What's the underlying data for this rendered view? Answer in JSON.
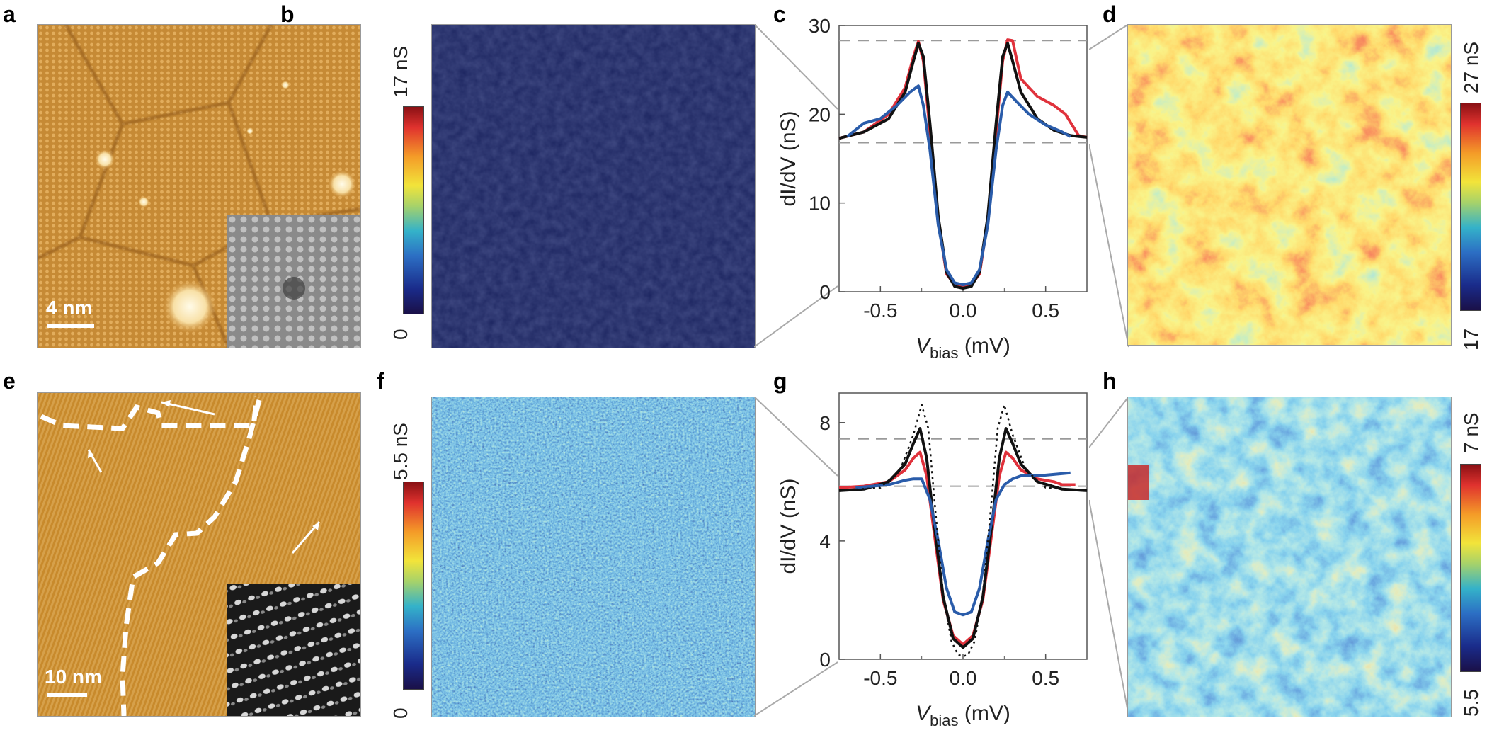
{
  "panel_labels": {
    "a": "a",
    "b": "b",
    "c": "c",
    "d": "d",
    "e": "e",
    "f": "f",
    "g": "g",
    "h": "h"
  },
  "scalebars": {
    "a": "4 nm",
    "e": "10 nm"
  },
  "colorbars": {
    "b": {
      "min": "0",
      "max": "17 nS"
    },
    "d": {
      "min": "17",
      "max": "27 nS"
    },
    "f": {
      "min": "0",
      "max": "5.5 nS"
    },
    "h": {
      "min": "5.5",
      "max": "7 nS"
    }
  },
  "colors": {
    "red": "#e0323c",
    "black": "#111111",
    "blue": "#2a5caa",
    "stm_orange": "#c88a2c",
    "dashed": "#999999"
  },
  "chart_data": [
    {
      "type": "line",
      "panel": "c",
      "xlabel": "V",
      "xlabel_sub": "bias",
      "xlabel_unit": " (mV)",
      "ylabel": "dI/dV (nS)",
      "xlim": [
        -0.75,
        0.75
      ],
      "ylim": [
        0,
        30
      ],
      "xticks": [
        -0.5,
        0.0,
        0.5
      ],
      "xtick_labels": [
        "-0.5",
        "0.0",
        "0.5"
      ],
      "yticks": [
        0,
        10,
        20,
        30
      ],
      "ytick_labels": [
        "0",
        "10",
        "20",
        "30"
      ],
      "hlines": [
        16.8,
        28.3
      ],
      "series": [
        {
          "name": "red",
          "color": "#e0323c",
          "x": [
            -0.75,
            -0.6,
            -0.45,
            -0.35,
            -0.3,
            -0.27,
            -0.24,
            -0.2,
            -0.15,
            -0.1,
            -0.05,
            0,
            0.05,
            0.1,
            0.15,
            0.2,
            0.24,
            0.27,
            0.3,
            0.35,
            0.45,
            0.55,
            0.62,
            0.7,
            0.75
          ],
          "y": [
            17.3,
            18,
            20,
            23,
            26.5,
            28.2,
            26,
            18,
            8,
            2,
            0.8,
            0.7,
            0.8,
            2,
            8,
            18,
            26,
            28.4,
            28.3,
            24,
            22,
            21,
            20,
            17.6,
            17.4
          ]
        },
        {
          "name": "black",
          "color": "#111111",
          "x": [
            -0.75,
            -0.6,
            -0.45,
            -0.35,
            -0.3,
            -0.27,
            -0.24,
            -0.2,
            -0.15,
            -0.1,
            -0.05,
            0,
            0.05,
            0.1,
            0.15,
            0.2,
            0.24,
            0.27,
            0.3,
            0.35,
            0.45,
            0.55,
            0.65,
            0.75
          ],
          "y": [
            17.3,
            18,
            19.5,
            22.5,
            26,
            28,
            26.5,
            19,
            8.5,
            2.2,
            0.6,
            0.4,
            0.6,
            2.2,
            8.5,
            19,
            26.5,
            28,
            26,
            22.5,
            19.5,
            18.2,
            17.6,
            17.4
          ]
        },
        {
          "name": "blue",
          "color": "#2a5caa",
          "x": [
            -0.7,
            -0.6,
            -0.5,
            -0.4,
            -0.32,
            -0.27,
            -0.24,
            -0.2,
            -0.15,
            -0.1,
            -0.05,
            0,
            0.05,
            0.1,
            0.15,
            0.2,
            0.24,
            0.27,
            0.32,
            0.4,
            0.5,
            0.6,
            0.65
          ],
          "y": [
            17.5,
            19,
            19.5,
            21,
            22.5,
            23.2,
            21,
            16,
            7.5,
            2.5,
            1,
            0.8,
            1,
            2.5,
            7.5,
            16,
            21,
            22.5,
            21.5,
            20,
            18.8,
            18,
            17.5
          ]
        }
      ]
    },
    {
      "type": "line",
      "panel": "g",
      "xlabel": "V",
      "xlabel_sub": "bias",
      "xlabel_unit": " (mV)",
      "ylabel": "dI/dV (nS)",
      "xlim": [
        -0.75,
        0.75
      ],
      "ylim": [
        0,
        9
      ],
      "xticks": [
        -0.5,
        0.0,
        0.5
      ],
      "xtick_labels": [
        "-0.5",
        "0.0",
        "0.5"
      ],
      "yticks": [
        0,
        4,
        8
      ],
      "ytick_labels": [
        "0",
        "4",
        "8"
      ],
      "hlines": [
        5.85,
        7.45
      ],
      "series": [
        {
          "name": "red",
          "color": "#e0323c",
          "x": [
            -0.75,
            -0.6,
            -0.45,
            -0.35,
            -0.3,
            -0.26,
            -0.22,
            -0.18,
            -0.12,
            -0.06,
            0,
            0.06,
            0.12,
            0.18,
            0.22,
            0.26,
            0.3,
            0.35,
            0.45,
            0.55,
            0.6,
            0.68
          ],
          "y": [
            5.8,
            5.85,
            6,
            6.4,
            6.8,
            7.0,
            6.2,
            4.5,
            2,
            0.8,
            0.5,
            0.8,
            2,
            4.5,
            6.2,
            7.0,
            6.8,
            6.4,
            6.1,
            6.0,
            5.9,
            5.9
          ]
        },
        {
          "name": "black",
          "color": "#111111",
          "x": [
            -0.75,
            -0.6,
            -0.45,
            -0.35,
            -0.3,
            -0.26,
            -0.22,
            -0.18,
            -0.12,
            -0.06,
            0,
            0.06,
            0.12,
            0.18,
            0.22,
            0.26,
            0.3,
            0.35,
            0.45,
            0.6,
            0.75
          ],
          "y": [
            5.7,
            5.75,
            6.0,
            6.6,
            7.3,
            7.8,
            6.8,
            4.8,
            2.1,
            0.7,
            0.4,
            0.7,
            2.1,
            4.8,
            6.8,
            7.8,
            7.3,
            6.6,
            6.0,
            5.75,
            5.7
          ]
        },
        {
          "name": "blue",
          "color": "#2a5caa",
          "x": [
            -0.65,
            -0.55,
            -0.45,
            -0.35,
            -0.3,
            -0.25,
            -0.2,
            -0.15,
            -0.1,
            -0.05,
            0,
            0.05,
            0.1,
            0.15,
            0.2,
            0.25,
            0.3,
            0.35,
            0.45,
            0.55,
            0.65
          ],
          "y": [
            5.8,
            5.85,
            5.9,
            6.05,
            6.1,
            6.1,
            5.4,
            4.0,
            2.4,
            1.6,
            1.5,
            1.6,
            2.4,
            4.0,
            5.4,
            5.9,
            6.1,
            6.2,
            6.2,
            6.25,
            6.3
          ]
        },
        {
          "name": "dotted",
          "color": "#111111",
          "dash": "3,5",
          "x": [
            -0.75,
            -0.5,
            -0.38,
            -0.3,
            -0.25,
            -0.21,
            -0.17,
            -0.12,
            -0.07,
            -0.03,
            0,
            0.03,
            0.07,
            0.12,
            0.17,
            0.21,
            0.25,
            0.3,
            0.38,
            0.5,
            0.75
          ],
          "y": [
            5.7,
            5.8,
            6.4,
            7.6,
            8.6,
            7.8,
            5.2,
            2.2,
            0.6,
            0.15,
            0.1,
            0.15,
            0.6,
            2.2,
            5.2,
            7.8,
            8.6,
            7.6,
            6.4,
            5.8,
            5.7
          ]
        }
      ]
    }
  ]
}
